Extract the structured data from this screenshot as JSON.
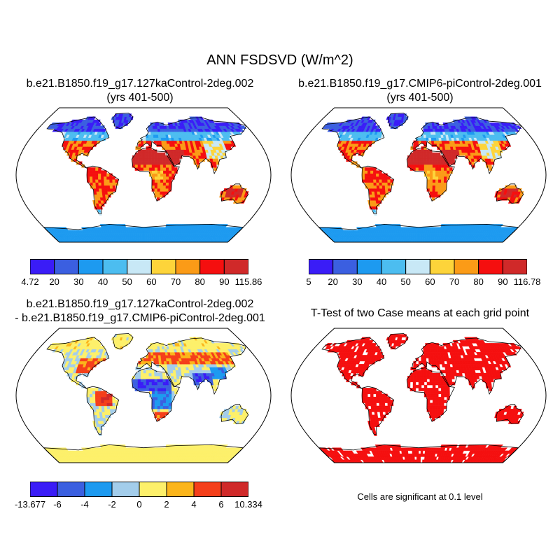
{
  "title": "ANN FSDSVD (W/m^2)",
  "panels": [
    {
      "title_line1": "b.e21.B1850.f19_g17.127kaControl-2deg.002",
      "title_line2": "(yrs 401-500)",
      "colorbar": {
        "colors": [
          "#3a1cf7",
          "#3b5fe0",
          "#1d9af0",
          "#4cbdf0",
          "#c8e8f6",
          "#fdd43a",
          "#fb9b17",
          "#f50f0f",
          "#d02929"
        ],
        "labels": [
          "4.72",
          "20",
          "30",
          "40",
          "50",
          "60",
          "70",
          "80",
          "90",
          "115.86"
        ]
      }
    },
    {
      "title_line1": "b.e21.B1850.f19_g17.CMIP6-piControl-2deg.001",
      "title_line2": "(yrs 401-500)",
      "colorbar": {
        "colors": [
          "#3a1cf7",
          "#3b5fe0",
          "#1d9af0",
          "#4cbdf0",
          "#c8e8f6",
          "#fdd43a",
          "#fb9b17",
          "#f50f0f",
          "#d02929"
        ],
        "labels": [
          "5",
          "20",
          "30",
          "40",
          "50",
          "60",
          "70",
          "80",
          "90",
          "116.78"
        ]
      }
    },
    {
      "title_line1": "b.e21.B1850.f19_g17.127kaControl-2deg.002",
      "title_line2": "- b.e21.B1850.f19_g17.CMIP6-piControl-2deg.001",
      "colorbar": {
        "colors": [
          "#3a1cf7",
          "#3b5fe0",
          "#1d9af0",
          "#a3cdeb",
          "#fdf06a",
          "#fbb51b",
          "#f53f1a",
          "#d02929"
        ],
        "labels": [
          "-13.677",
          "-6",
          "-4",
          "-2",
          "0",
          "2",
          "4",
          "6",
          "10.334"
        ]
      }
    },
    {
      "title_line1": "T-Test of two Case means at each grid point",
      "note": "Cells are significant at 0.1 level",
      "fill_color": "#f50f0f"
    }
  ]
}
